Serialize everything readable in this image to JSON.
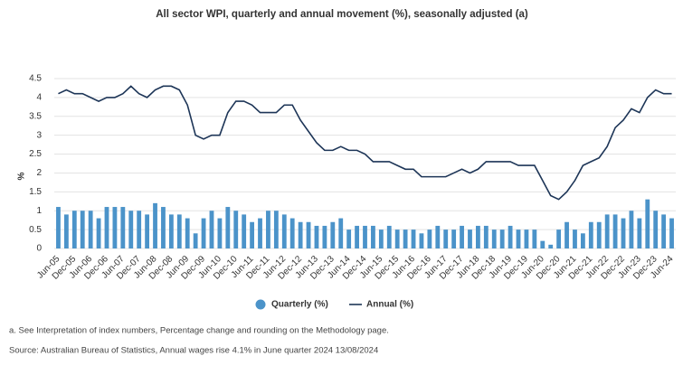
{
  "chart_data": {
    "type": "bar-line",
    "title": "All sector WPI, quarterly and annual movement (%), seasonally adjusted (a)",
    "y_label": "%",
    "categories": [
      "Jun-05",
      null,
      "Dec-05",
      null,
      "Jun-06",
      null,
      "Dec-06",
      null,
      "Jun-07",
      null,
      "Dec-07",
      null,
      "Jun-08",
      null,
      "Dec-08",
      null,
      "Jun-09",
      null,
      "Dec-09",
      null,
      "Jun-10",
      null,
      "Dec-10",
      null,
      "Jun-11",
      null,
      "Dec-11",
      null,
      "Jun-12",
      null,
      "Dec-12",
      null,
      "Jun-13",
      null,
      "Dec-13",
      null,
      "Jun-14",
      null,
      "Dec-14",
      null,
      "Jun-15",
      null,
      "Dec-15",
      null,
      "Jun-16",
      null,
      "Dec-16",
      null,
      "Jun-17",
      null,
      "Dec-17",
      null,
      "Jun-18",
      null,
      "Dec-18",
      null,
      "Jun-19",
      null,
      "Dec-19",
      null,
      "Jun-20",
      null,
      "Dec-20",
      null,
      "Jun-21",
      null,
      "Dec-21",
      null,
      "Jun-22",
      null,
      "Dec-22",
      null,
      "Jun-23",
      null,
      "Dec-23",
      null,
      "Jun-24"
    ],
    "series": [
      {
        "name": "Quarterly (%)",
        "kind": "bar",
        "color": "#4b93c9",
        "values": [
          1.1,
          0.9,
          1.0,
          1.0,
          1.0,
          0.8,
          1.1,
          1.1,
          1.1,
          1.0,
          1.0,
          0.9,
          1.2,
          1.1,
          0.9,
          0.9,
          0.8,
          0.4,
          0.8,
          1.0,
          0.8,
          1.1,
          1.0,
          0.9,
          0.7,
          0.8,
          1.0,
          1.0,
          0.9,
          0.8,
          0.7,
          0.7,
          0.6,
          0.6,
          0.7,
          0.8,
          0.5,
          0.6,
          0.6,
          0.6,
          0.5,
          0.6,
          0.5,
          0.5,
          0.5,
          0.4,
          0.5,
          0.6,
          0.5,
          0.5,
          0.6,
          0.5,
          0.6,
          0.6,
          0.5,
          0.5,
          0.6,
          0.5,
          0.5,
          0.5,
          0.2,
          0.1,
          0.5,
          0.7,
          0.5,
          0.4,
          0.7,
          0.7,
          0.9,
          0.9,
          0.8,
          1.0,
          0.8,
          1.3,
          1.0,
          0.9,
          0.8
        ]
      },
      {
        "name": "Annual (%)",
        "kind": "line",
        "color": "#1d3557",
        "values": [
          4.1,
          4.2,
          4.1,
          4.1,
          4.0,
          3.9,
          4.0,
          4.0,
          4.1,
          4.3,
          4.1,
          4.0,
          4.2,
          4.3,
          4.3,
          4.2,
          3.8,
          3.0,
          2.9,
          3.0,
          3.0,
          3.6,
          3.9,
          3.9,
          3.8,
          3.6,
          3.6,
          3.6,
          3.8,
          3.8,
          3.4,
          3.1,
          2.8,
          2.6,
          2.6,
          2.7,
          2.6,
          2.6,
          2.5,
          2.3,
          2.3,
          2.3,
          2.2,
          2.1,
          2.1,
          1.9,
          1.9,
          1.9,
          1.9,
          2.0,
          2.1,
          2.0,
          2.1,
          2.3,
          2.3,
          2.3,
          2.3,
          2.2,
          2.2,
          2.2,
          1.8,
          1.4,
          1.3,
          1.5,
          1.8,
          2.2,
          2.3,
          2.4,
          2.7,
          3.2,
          3.4,
          3.7,
          3.6,
          4.0,
          4.2,
          4.1,
          4.1
        ]
      }
    ],
    "ylim": [
      0,
      4.5
    ],
    "yticks": [
      0,
      0.5,
      1,
      1.5,
      2,
      2.5,
      3,
      3.5,
      4,
      4.5
    ],
    "grid": true,
    "notes": [
      "a. See Interpretation of index numbers, Percentage change and rounding on the Methodology page.",
      "Source: Australian Bureau of Statistics, Annual wages rise 4.1% in June quarter 2024 13/08/2024"
    ]
  }
}
